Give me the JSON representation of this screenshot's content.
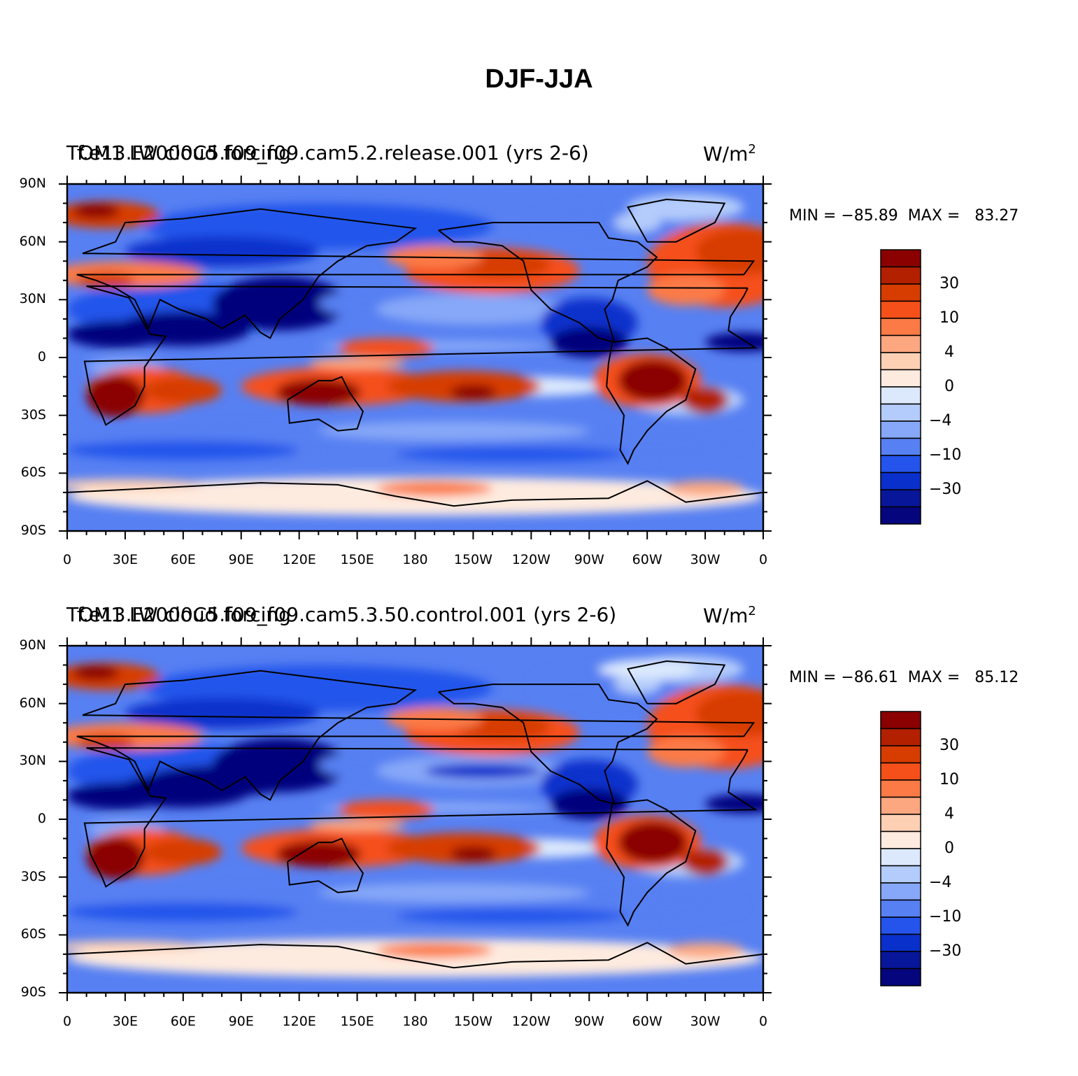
{
  "title": "DJF-JJA",
  "lat_labels": [
    "90N",
    "60N",
    "30N",
    "0",
    "30S",
    "60S",
    "90S"
  ],
  "lon_labels": [
    "0",
    "30E",
    "60E",
    "90E",
    "120E",
    "150E",
    "180",
    "150W",
    "120W",
    "90W",
    "60W",
    "30W",
    "0"
  ],
  "colorbar": {
    "labels": [
      "30",
      "10",
      "4",
      "0",
      "−4",
      "−10",
      "−30"
    ],
    "colors": [
      "#8b0000",
      "#b22000",
      "#d73c00",
      "#f5501a",
      "#fb7a46",
      "#fca780",
      "#fdd0b4",
      "#feebdf",
      "#dce9fd",
      "#b4ccfb",
      "#87a8f8",
      "#5780f2",
      "#2454eb",
      "#0a30cc",
      "#08169a",
      "#05057d"
    ]
  },
  "panels": [
    {
      "left_title": "TOM1 LW cloud forcing",
      "case_title": "f.e13.F2000C5.f09_f09.cam5.2.release.001 (yrs 2-6)",
      "units": "W/m",
      "units_exp": "2",
      "min_label": "MIN =",
      "min_value": "−85.89",
      "max_label": "MAX =",
      "max_value": "83.27"
    },
    {
      "left_title": "TOM1 LW cloud forcing",
      "case_title": "f.e13.F2000C5.f09_f09.cam5.3.50.control.001 (yrs 2-6)",
      "units": "W/m",
      "units_exp": "2",
      "min_label": "MIN =",
      "min_value": "−86.61",
      "max_label": "MAX =",
      "max_value": "85.12"
    }
  ]
}
